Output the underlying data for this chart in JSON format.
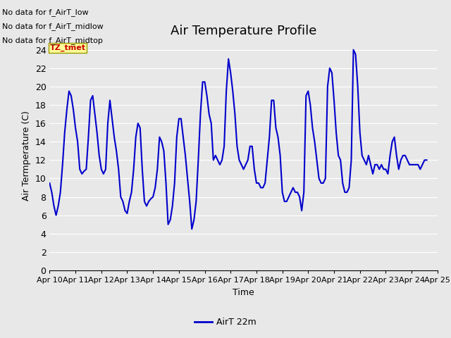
{
  "title": "Air Temperature Profile",
  "xlabel": "Time",
  "ylabel": "Air Termperature (C)",
  "ylim": [
    0,
    25
  ],
  "yticks": [
    0,
    2,
    4,
    6,
    8,
    10,
    12,
    14,
    16,
    18,
    20,
    22,
    24
  ],
  "line_color": "#0000cc",
  "line_width": 1.5,
  "fig_bg_color": "#e8e8e8",
  "plot_bg_color": "#e8e8e8",
  "grid_color": "#ffffff",
  "legend_label": "AirT 22m",
  "no_data_texts": [
    "No data for f_AirT_low",
    "No data for f_AirT_midlow",
    "No data for f_AirT_midtop"
  ],
  "tz_label": "TZ_tmet",
  "x_labels": [
    "Apr 10",
    "Apr 11",
    "Apr 12",
    "Apr 13",
    "Apr 14",
    "Apr 15",
    "Apr 16",
    "Apr 17",
    "Apr 18",
    "Apr 19",
    "Apr 20",
    "Apr 21",
    "Apr 22",
    "Apr 23",
    "Apr 24",
    "Apr 25"
  ],
  "data_x": [
    0.0,
    0.083,
    0.167,
    0.25,
    0.333,
    0.417,
    0.5,
    0.583,
    0.667,
    0.75,
    0.833,
    0.917,
    1.0,
    1.083,
    1.167,
    1.25,
    1.333,
    1.417,
    1.5,
    1.583,
    1.667,
    1.75,
    1.833,
    1.917,
    2.0,
    2.083,
    2.167,
    2.25,
    2.333,
    2.417,
    2.5,
    2.583,
    2.667,
    2.75,
    2.833,
    2.917,
    3.0,
    3.083,
    3.167,
    3.25,
    3.333,
    3.417,
    3.5,
    3.583,
    3.667,
    3.75,
    3.833,
    3.917,
    4.0,
    4.083,
    4.167,
    4.25,
    4.333,
    4.417,
    4.5,
    4.583,
    4.667,
    4.75,
    4.833,
    4.917,
    5.0,
    5.083,
    5.167,
    5.25,
    5.333,
    5.417,
    5.5,
    5.583,
    5.667,
    5.75,
    5.833,
    5.917,
    6.0,
    6.083,
    6.167,
    6.25,
    6.333,
    6.417,
    6.5,
    6.583,
    6.667,
    6.75,
    6.833,
    6.917,
    7.0,
    7.083,
    7.167,
    7.25,
    7.333,
    7.417,
    7.5,
    7.583,
    7.667,
    7.75,
    7.833,
    7.917,
    8.0,
    8.083,
    8.167,
    8.25,
    8.333,
    8.417,
    8.5,
    8.583,
    8.667,
    8.75,
    8.833,
    8.917,
    9.0,
    9.083,
    9.167,
    9.25,
    9.333,
    9.417,
    9.5,
    9.583,
    9.667,
    9.75,
    9.833,
    9.917,
    10.0,
    10.083,
    10.167,
    10.25,
    10.333,
    10.417,
    10.5,
    10.583,
    10.667,
    10.75,
    10.833,
    10.917,
    11.0,
    11.083,
    11.167,
    11.25,
    11.333,
    11.417,
    11.5,
    11.583,
    11.667,
    11.75,
    11.833,
    11.917,
    12.0,
    12.083,
    12.167,
    12.25,
    12.333,
    12.417,
    12.5,
    12.583,
    12.667,
    12.75,
    12.833,
    12.917,
    13.0,
    13.083,
    13.167,
    13.25,
    13.333,
    13.417,
    13.5,
    13.583,
    13.667,
    13.75,
    13.833,
    13.917,
    14.0,
    14.083,
    14.167,
    14.25,
    14.333,
    14.417,
    14.5,
    14.583
  ],
  "data_y": [
    9.5,
    8.5,
    7.0,
    6.0,
    7.0,
    8.5,
    11.5,
    15.0,
    17.5,
    19.5,
    19.0,
    17.5,
    15.5,
    14.0,
    11.0,
    10.5,
    10.8,
    11.0,
    14.5,
    18.5,
    19.0,
    17.0,
    15.0,
    12.5,
    11.0,
    10.5,
    11.0,
    16.0,
    18.5,
    16.5,
    14.5,
    13.0,
    11.0,
    8.0,
    7.5,
    6.5,
    6.2,
    7.5,
    8.5,
    11.0,
    14.5,
    16.0,
    15.5,
    11.0,
    7.5,
    7.0,
    7.5,
    7.8,
    8.0,
    9.0,
    11.0,
    14.5,
    14.0,
    13.0,
    9.5,
    5.0,
    5.5,
    7.0,
    9.5,
    14.5,
    16.5,
    16.5,
    14.5,
    12.5,
    10.0,
    7.5,
    4.5,
    5.5,
    7.5,
    12.0,
    17.0,
    20.5,
    20.5,
    19.0,
    17.0,
    16.0,
    12.0,
    12.5,
    12.0,
    11.5,
    12.0,
    13.5,
    19.5,
    23.0,
    21.5,
    19.5,
    17.0,
    13.5,
    12.0,
    11.5,
    11.0,
    11.5,
    12.0,
    13.5,
    13.5,
    11.0,
    9.5,
    9.5,
    9.0,
    9.0,
    9.5,
    12.0,
    14.5,
    18.5,
    18.5,
    15.5,
    14.5,
    12.5,
    8.5,
    7.5,
    7.5,
    8.0,
    8.5,
    9.0,
    8.5,
    8.5,
    8.0,
    6.5,
    8.5,
    19.0,
    19.5,
    18.0,
    15.5,
    14.0,
    12.0,
    10.0,
    9.5,
    9.5,
    10.0,
    20.0,
    22.0,
    21.5,
    18.5,
    15.0,
    12.5,
    12.0,
    9.5,
    8.5,
    8.5,
    9.0,
    12.0,
    24.0,
    23.5,
    20.0,
    15.0,
    12.5,
    12.0,
    11.5,
    12.5,
    11.5,
    10.5,
    11.5,
    11.5,
    11.0,
    11.5,
    11.0,
    11.0,
    10.5,
    12.5,
    14.0,
    14.5,
    12.5,
    11.0,
    12.0,
    12.5,
    12.5,
    12.0,
    11.5,
    11.5,
    11.5,
    11.5,
    11.5,
    11.0,
    11.5,
    12.0,
    12.0
  ]
}
